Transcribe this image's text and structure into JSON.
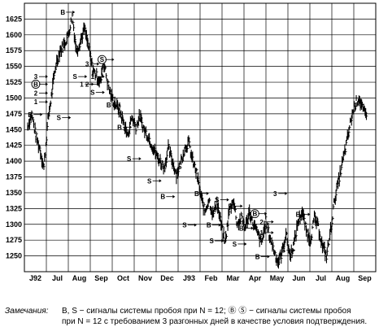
{
  "chart_data": {
    "type": "ohlc",
    "title": "",
    "xlabel": "",
    "ylabel": "",
    "ylim": [
      1225,
      1650
    ],
    "yticks": [
      1250,
      1275,
      1300,
      1325,
      1350,
      1375,
      1400,
      1425,
      1450,
      1475,
      1500,
      1525,
      1550,
      1575,
      1600,
      1625
    ],
    "xticks": [
      "J92",
      "Jul",
      "Aug",
      "Sep",
      "Oct",
      "Nov",
      "Dec",
      "J93",
      "Feb",
      "Mar",
      "Apr",
      "May",
      "Jun",
      "Jul",
      "Aug",
      "Sep"
    ],
    "grid": true,
    "series": [
      {
        "kind": "close-path",
        "points": [
          [
            0,
            1455
          ],
          [
            0.3,
            1475
          ],
          [
            0.6,
            1440
          ],
          [
            0.9,
            1420
          ],
          [
            1.2,
            1390
          ],
          [
            1.5,
            1465
          ],
          [
            1.8,
            1510
          ],
          [
            2.1,
            1555
          ],
          [
            2.4,
            1575
          ],
          [
            2.7,
            1585
          ],
          [
            3.0,
            1600
          ],
          [
            3.3,
            1630
          ],
          [
            3.6,
            1575
          ],
          [
            3.9,
            1590
          ],
          [
            4.2,
            1610
          ],
          [
            4.5,
            1580
          ],
          [
            4.8,
            1545
          ],
          [
            5.1,
            1535
          ],
          [
            5.4,
            1525
          ],
          [
            5.6,
            1560
          ],
          [
            5.9,
            1525
          ],
          [
            6.2,
            1500
          ],
          [
            6.5,
            1490
          ],
          [
            6.8,
            1480
          ],
          [
            7.1,
            1460
          ],
          [
            7.4,
            1440
          ],
          [
            7.7,
            1470
          ],
          [
            8.0,
            1455
          ],
          [
            8.3,
            1470
          ],
          [
            8.6,
            1450
          ],
          [
            8.9,
            1440
          ],
          [
            9.2,
            1425
          ],
          [
            9.5,
            1410
          ],
          [
            9.8,
            1400
          ],
          [
            10.1,
            1390
          ],
          [
            10.4,
            1420
          ],
          [
            10.7,
            1400
          ],
          [
            11.0,
            1380
          ],
          [
            11.3,
            1395
          ],
          [
            11.6,
            1420
          ],
          [
            11.9,
            1430
          ],
          [
            12.2,
            1400
          ],
          [
            12.5,
            1380
          ],
          [
            12.8,
            1345
          ],
          [
            13.1,
            1320
          ],
          [
            13.4,
            1340
          ],
          [
            13.7,
            1315
          ],
          [
            14.0,
            1335
          ],
          [
            14.3,
            1300
          ],
          [
            14.6,
            1270
          ],
          [
            14.9,
            1320
          ],
          [
            15.2,
            1340
          ],
          [
            15.5,
            1300
          ],
          [
            15.8,
            1310
          ],
          [
            16.1,
            1295
          ],
          [
            16.4,
            1320
          ],
          [
            16.7,
            1300
          ],
          [
            17.0,
            1285
          ],
          [
            17.3,
            1270
          ],
          [
            17.6,
            1305
          ],
          [
            17.9,
            1280
          ],
          [
            18.2,
            1260
          ],
          [
            18.5,
            1240
          ],
          [
            18.8,
            1255
          ],
          [
            19.1,
            1285
          ],
          [
            19.4,
            1250
          ],
          [
            19.7,
            1270
          ],
          [
            20.0,
            1305
          ],
          [
            20.3,
            1320
          ],
          [
            20.6,
            1290
          ],
          [
            20.9,
            1275
          ],
          [
            21.2,
            1310
          ],
          [
            21.5,
            1295
          ],
          [
            21.8,
            1265
          ],
          [
            22.1,
            1250
          ],
          [
            22.4,
            1290
          ],
          [
            22.7,
            1340
          ],
          [
            23.0,
            1370
          ],
          [
            23.3,
            1400
          ],
          [
            23.6,
            1430
          ],
          [
            23.9,
            1465
          ],
          [
            24.2,
            1490
          ],
          [
            24.5,
            1500
          ],
          [
            24.8,
            1480
          ],
          [
            25.1,
            1470
          ]
        ]
      }
    ],
    "signals": [
      {
        "label": "B",
        "x": 2.6,
        "y": 1632
      },
      {
        "label": "3",
        "x": 0.6,
        "y": 1530
      },
      {
        "label": "B",
        "x": 0.6,
        "y": 1518,
        "circled": true
      },
      {
        "label": "2",
        "x": 0.6,
        "y": 1504
      },
      {
        "label": "1",
        "x": 0.6,
        "y": 1490
      },
      {
        "label": "B",
        "x": 0.2,
        "y": 1470
      },
      {
        "label": "S",
        "x": 2.3,
        "y": 1465
      },
      {
        "label": "3",
        "x": 4.4,
        "y": 1550
      },
      {
        "label": "S",
        "x": 3.5,
        "y": 1530
      },
      {
        "label": "1",
        "x": 4.0,
        "y": 1518
      },
      {
        "label": "2",
        "x": 4.4,
        "y": 1518
      },
      {
        "label": "S",
        "x": 4.8,
        "y": 1505
      },
      {
        "label": "1",
        "x": 4.8,
        "y": 1530
      },
      {
        "label": "S",
        "x": 5.5,
        "y": 1557,
        "circled": true
      },
      {
        "label": "B",
        "x": 6.0,
        "y": 1485
      },
      {
        "label": "B",
        "x": 6.8,
        "y": 1450
      },
      {
        "label": "S",
        "x": 7.5,
        "y": 1400
      },
      {
        "label": "B",
        "x": 10.0,
        "y": 1340
      },
      {
        "label": "S",
        "x": 9.0,
        "y": 1365
      },
      {
        "label": "B",
        "x": 12.5,
        "y": 1345
      },
      {
        "label": "S",
        "x": 11.6,
        "y": 1295
      },
      {
        "label": "B",
        "x": 13.4,
        "y": 1295
      },
      {
        "label": "S",
        "x": 13.6,
        "y": 1270
      },
      {
        "label": "B",
        "x": 15.8,
        "y": 1290
      },
      {
        "label": "S",
        "x": 15.3,
        "y": 1265
      },
      {
        "label": "S",
        "x": 14.0,
        "y": 1335
      },
      {
        "label": "B",
        "x": 15.0,
        "y": 1325
      },
      {
        "label": "B",
        "x": 17.0,
        "y": 1245
      },
      {
        "label": "3",
        "x": 18.3,
        "y": 1345
      },
      {
        "label": "B",
        "x": 16.8,
        "y": 1313,
        "circled": true
      },
      {
        "label": "2",
        "x": 17.3,
        "y": 1300
      },
      {
        "label": "1",
        "x": 17.3,
        "y": 1283
      },
      {
        "label": "B",
        "x": 20.0,
        "y": 1312
      },
      {
        "label": "S",
        "x": 18.9,
        "y": 1255
      }
    ],
    "notes": {
      "label": "Замечания:",
      "line1": "B, S − сигналы системы пробоя при N = 12;  Ⓑ Ⓢ − сигналы системы пробоя",
      "line2": "при N = 12 с требованием 3 разгонных дней в качестве условия подтверждения."
    }
  }
}
